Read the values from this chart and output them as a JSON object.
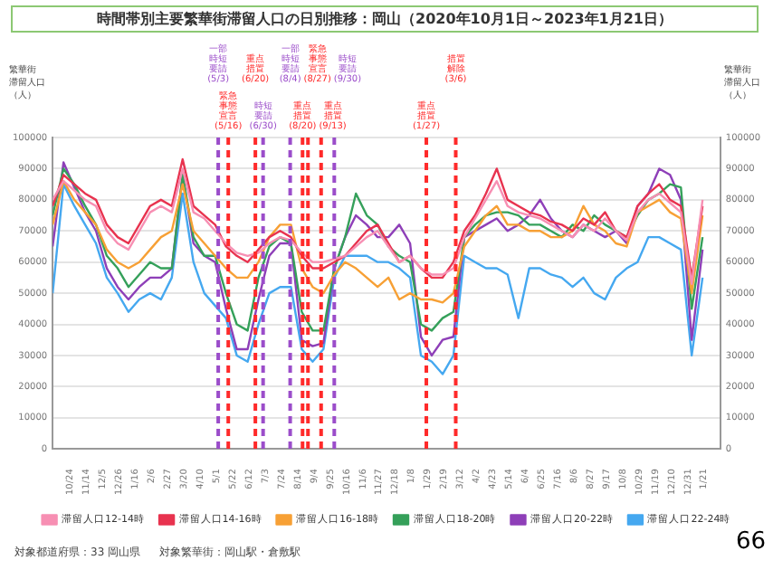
{
  "chart_data": {
    "type": "line",
    "title": "時間帯別主要繁華街滞留人口の日別推移：岡山（2020年10月1日～2023年1月21日）",
    "ylabel": "繁華街滞留人口（人）",
    "y2label": "繁華街滞留人口（人）",
    "x": [
      "2020-10-01",
      "2020-10-15",
      "2020-10-29",
      "2020-11-12",
      "2020-11-26",
      "2020-12-10",
      "2020-12-24",
      "2021-01-07",
      "2021-01-21",
      "2021-02-04",
      "2021-02-18",
      "2021-03-04",
      "2021-03-18",
      "2021-04-01",
      "2021-04-15",
      "2021-04-29",
      "2021-05-13",
      "2021-05-27",
      "2021-06-10",
      "2021-06-24",
      "2021-07-08",
      "2021-07-22",
      "2021-08-05",
      "2021-08-19",
      "2021-09-02",
      "2021-09-16",
      "2021-09-30",
      "2021-10-14",
      "2021-10-28",
      "2021-11-11",
      "2021-11-25",
      "2021-12-09",
      "2021-12-23",
      "2022-01-06",
      "2022-01-20",
      "2022-02-03",
      "2022-02-17",
      "2022-03-03",
      "2022-03-17",
      "2022-03-31",
      "2022-04-14",
      "2022-04-28",
      "2022-05-12",
      "2022-05-26",
      "2022-06-09",
      "2022-06-23",
      "2022-07-07",
      "2022-07-21",
      "2022-08-04",
      "2022-08-18",
      "2022-09-01",
      "2022-09-15",
      "2022-09-29",
      "2022-10-13",
      "2022-10-27",
      "2022-11-10",
      "2022-11-24",
      "2022-12-08",
      "2022-12-22",
      "2023-01-05",
      "2023-01-19"
    ],
    "series": [
      {
        "name": "滞留人口12-14時",
        "color": "#f78fb3",
        "values": [
          80000,
          86000,
          83000,
          80000,
          78000,
          70000,
          66000,
          64000,
          70000,
          76000,
          78000,
          76000,
          90000,
          76000,
          74000,
          70000,
          66000,
          63000,
          62000,
          63000,
          66000,
          68000,
          67000,
          63000,
          60000,
          60000,
          61000,
          62000,
          65000,
          68000,
          70000,
          65000,
          60000,
          62000,
          58000,
          56000,
          56000,
          58000,
          68000,
          74000,
          80000,
          86000,
          78000,
          76000,
          75000,
          74000,
          72000,
          70000,
          68000,
          72000,
          70000,
          74000,
          70000,
          67000,
          76000,
          80000,
          82000,
          79000,
          76000,
          53000,
          80000
        ]
      },
      {
        "name": "滞留人口14-16時",
        "color": "#e8334f",
        "values": [
          78000,
          88000,
          85000,
          82000,
          80000,
          72000,
          68000,
          66000,
          72000,
          78000,
          80000,
          78000,
          93000,
          78000,
          75000,
          72000,
          65000,
          62000,
          60000,
          64000,
          68000,
          70000,
          68000,
          62000,
          58000,
          58000,
          60000,
          62000,
          66000,
          70000,
          72000,
          66000,
          60000,
          62000,
          58000,
          55000,
          55000,
          60000,
          70000,
          75000,
          82000,
          90000,
          80000,
          78000,
          76000,
          75000,
          73000,
          72000,
          70000,
          74000,
          72000,
          76000,
          70000,
          68000,
          78000,
          82000,
          85000,
          80000,
          78000,
          55000,
          78000
        ]
      },
      {
        "name": "滞留人口16-18時",
        "color": "#f7a035",
        "values": [
          72000,
          86000,
          80000,
          76000,
          72000,
          64000,
          60000,
          58000,
          60000,
          64000,
          68000,
          70000,
          85000,
          70000,
          66000,
          62000,
          58000,
          55000,
          55000,
          60000,
          68000,
          72000,
          72000,
          58000,
          52000,
          50000,
          56000,
          60000,
          58000,
          55000,
          52000,
          55000,
          48000,
          50000,
          48000,
          48000,
          47000,
          50000,
          65000,
          70000,
          75000,
          78000,
          72000,
          72000,
          70000,
          70000,
          68000,
          68000,
          70000,
          78000,
          72000,
          70000,
          66000,
          65000,
          76000,
          78000,
          80000,
          76000,
          74000,
          50000,
          75000
        ]
      },
      {
        "name": "滞留人口18-20時",
        "color": "#35a05a",
        "values": [
          75000,
          90000,
          85000,
          78000,
          72000,
          62000,
          58000,
          52000,
          56000,
          60000,
          58000,
          58000,
          88000,
          68000,
          62000,
          62000,
          50000,
          40000,
          38000,
          55000,
          65000,
          68000,
          66000,
          44000,
          38000,
          38000,
          58000,
          68000,
          82000,
          75000,
          72000,
          65000,
          62000,
          60000,
          40000,
          38000,
          42000,
          44000,
          68000,
          72000,
          75000,
          76000,
          76000,
          75000,
          72000,
          72000,
          70000,
          68000,
          72000,
          70000,
          75000,
          72000,
          70000,
          68000,
          75000,
          80000,
          82000,
          85000,
          84000,
          45000,
          68000
        ]
      },
      {
        "name": "滞留人口20-22時",
        "color": "#8e3fb8",
        "values": [
          65000,
          92000,
          84000,
          76000,
          70000,
          58000,
          52000,
          48000,
          52000,
          55000,
          55000,
          58000,
          88000,
          66000,
          62000,
          60000,
          45000,
          32000,
          32000,
          48000,
          62000,
          66000,
          66000,
          35000,
          33000,
          34000,
          58000,
          68000,
          75000,
          72000,
          68000,
          68000,
          72000,
          66000,
          36000,
          30000,
          35000,
          36000,
          68000,
          70000,
          72000,
          74000,
          70000,
          72000,
          75000,
          80000,
          74000,
          70000,
          68000,
          72000,
          70000,
          68000,
          70000,
          66000,
          78000,
          82000,
          90000,
          88000,
          80000,
          35000,
          64000
        ]
      },
      {
        "name": "滞留人口22-24時",
        "color": "#45a8f0",
        "values": [
          50000,
          85000,
          78000,
          72000,
          66000,
          55000,
          50000,
          44000,
          48000,
          50000,
          48000,
          55000,
          82000,
          60000,
          50000,
          46000,
          42000,
          30000,
          28000,
          40000,
          50000,
          52000,
          52000,
          32000,
          28000,
          32000,
          55000,
          62000,
          62000,
          62000,
          60000,
          60000,
          58000,
          55000,
          30000,
          28000,
          24000,
          30000,
          62000,
          60000,
          58000,
          58000,
          56000,
          42000,
          58000,
          58000,
          56000,
          55000,
          52000,
          55000,
          50000,
          48000,
          55000,
          58000,
          60000,
          68000,
          68000,
          66000,
          64000,
          30000,
          55000
        ]
      }
    ],
    "xlim": [
      "2020-10-01",
      "2023-02-11"
    ],
    "xticks": [
      {
        "value": "2020-10-24",
        "label": "10/24"
      },
      {
        "value": "2020-11-14",
        "label": "11/14"
      },
      {
        "value": "2020-12-05",
        "label": "12/5"
      },
      {
        "value": "2020-12-26",
        "label": "12/26"
      },
      {
        "value": "2021-01-16",
        "label": "1/16"
      },
      {
        "value": "2021-02-06",
        "label": "2/6"
      },
      {
        "value": "2021-02-27",
        "label": "2/27"
      },
      {
        "value": "2021-03-20",
        "label": "3/20"
      },
      {
        "value": "2021-04-10",
        "label": "4/10"
      },
      {
        "value": "2021-05-01",
        "label": "5/1"
      },
      {
        "value": "2021-05-22",
        "label": "5/22"
      },
      {
        "value": "2021-06-12",
        "label": "6/12"
      },
      {
        "value": "2021-07-03",
        "label": "7/3"
      },
      {
        "value": "2021-07-24",
        "label": "7/24"
      },
      {
        "value": "2021-08-14",
        "label": "8/14"
      },
      {
        "value": "2021-09-04",
        "label": "9/4"
      },
      {
        "value": "2021-09-25",
        "label": "9/25"
      },
      {
        "value": "2021-10-16",
        "label": "10/16"
      },
      {
        "value": "2021-11-06",
        "label": "11/6"
      },
      {
        "value": "2021-11-27",
        "label": "11/27"
      },
      {
        "value": "2021-12-18",
        "label": "12/18"
      },
      {
        "value": "2022-01-08",
        "label": "1/8"
      },
      {
        "value": "2022-01-29",
        "label": "1/29"
      },
      {
        "value": "2022-02-19",
        "label": "2/19"
      },
      {
        "value": "2022-03-12",
        "label": "3/12"
      },
      {
        "value": "2022-04-02",
        "label": "4/2"
      },
      {
        "value": "2022-04-23",
        "label": "4/23"
      },
      {
        "value": "2022-05-14",
        "label": "5/14"
      },
      {
        "value": "2022-06-04",
        "label": "6/4"
      },
      {
        "value": "2022-06-25",
        "label": "6/25"
      },
      {
        "value": "2022-07-16",
        "label": "7/16"
      },
      {
        "value": "2022-08-06",
        "label": "8/6"
      },
      {
        "value": "2022-08-27",
        "label": "8/27"
      },
      {
        "value": "2022-09-17",
        "label": "9/17"
      },
      {
        "value": "2022-10-08",
        "label": "10/8"
      },
      {
        "value": "2022-10-29",
        "label": "10/29"
      },
      {
        "value": "2022-11-19",
        "label": "11/19"
      },
      {
        "value": "2022-12-10",
        "label": "12/10"
      },
      {
        "value": "2022-12-31",
        "label": "12/31"
      },
      {
        "value": "2023-01-21",
        "label": "1/21"
      }
    ],
    "ylim": [
      0,
      100000
    ],
    "yticks": [
      0,
      10000,
      20000,
      30000,
      40000,
      50000,
      60000,
      70000,
      80000,
      90000,
      100000
    ],
    "y2lim": [
      0,
      100000
    ],
    "y2ticks": [
      0,
      10000,
      20000,
      30000,
      40000,
      50000,
      60000,
      70000,
      80000,
      90000,
      100000
    ],
    "ref_lines": [
      {
        "axis": "x",
        "value": "2021-05-03",
        "label": "一部時短要請(5/3)",
        "color": "#9b4dca",
        "line_style": "dashed"
      },
      {
        "axis": "x",
        "value": "2021-05-16",
        "label": "緊急事態宣言(5/16)",
        "color": "#ff2a2a",
        "line_style": "dashed"
      },
      {
        "axis": "x",
        "value": "2021-06-20",
        "label": "重点措置(6/20)",
        "color": "#ff2a2a",
        "line_style": "dashed"
      },
      {
        "axis": "x",
        "value": "2021-06-30",
        "label": "時短要請(6/30)",
        "color": "#9b4dca",
        "line_style": "dashed"
      },
      {
        "axis": "x",
        "value": "2021-08-04",
        "label": "一部時短要請(8/4)",
        "color": "#9b4dca",
        "line_style": "dashed"
      },
      {
        "axis": "x",
        "value": "2021-08-20",
        "label": "重点措置(8/20)",
        "color": "#ff2a2a",
        "line_style": "dashed"
      },
      {
        "axis": "x",
        "value": "2021-08-27",
        "label": "緊急事態宣言(8/27)",
        "color": "#ff2a2a",
        "line_style": "dashed"
      },
      {
        "axis": "x",
        "value": "2021-09-13",
        "label": "重点措置(9/13)",
        "color": "#ff2a2a",
        "line_style": "dashed"
      },
      {
        "axis": "x",
        "value": "2021-09-30",
        "label": "時短要請(9/30)",
        "color": "#9b4dca",
        "line_style": "dashed"
      },
      {
        "axis": "x",
        "value": "2022-01-27",
        "label": "重点措置(1/27)",
        "color": "#ff2a2a",
        "line_style": "dashed"
      },
      {
        "axis": "x",
        "value": "2022-03-06",
        "label": "措置解除(3/6)",
        "color": "#ff2a2a",
        "line_style": "dashed"
      }
    ],
    "annotations": [
      "対象都道府県：33 岡山県",
      "対象繁華街：岡山駅・倉敷駅",
      "66"
    ],
    "grid": "y",
    "legend": "bottom",
    "marker": "none",
    "line_style": "solid"
  }
}
